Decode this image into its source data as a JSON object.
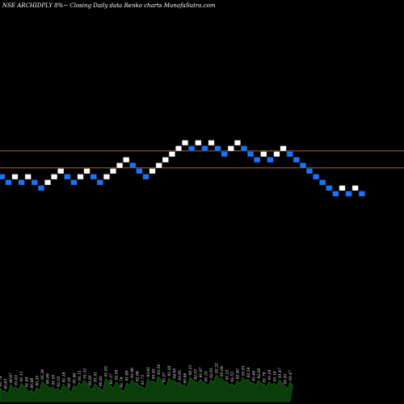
{
  "title": "NSE ARCHIDPLY 8%~  Closing Daily data  Renko  charts MunafaSutra.com",
  "colors": {
    "background": "#000000",
    "up_brick": "#ffffff",
    "down_brick": "#1874ff",
    "brick_border": "#222222",
    "level_line": "#c8762a",
    "volume_fill": "#0b3d0b",
    "volume_stroke": "#1f7a1f"
  },
  "chart_data": {
    "type": "renko",
    "title": "NSE ARCHIDPLY 8%~  Closing Daily data  Renko  charts MunafaSutra.com",
    "grid": false,
    "y_note": "brick levels in steps of one brick (relative)",
    "bricks": [
      {
        "level": 9,
        "dir": "down"
      },
      {
        "level": 8,
        "dir": "down"
      },
      {
        "level": 9,
        "dir": "up"
      },
      {
        "level": 8,
        "dir": "down"
      },
      {
        "level": 9,
        "dir": "up"
      },
      {
        "level": 8,
        "dir": "down"
      },
      {
        "level": 7,
        "dir": "down"
      },
      {
        "level": 8,
        "dir": "up"
      },
      {
        "level": 9,
        "dir": "up"
      },
      {
        "level": 10,
        "dir": "up"
      },
      {
        "level": 9,
        "dir": "down"
      },
      {
        "level": 8,
        "dir": "down"
      },
      {
        "level": 9,
        "dir": "up"
      },
      {
        "level": 10,
        "dir": "up"
      },
      {
        "level": 9,
        "dir": "down"
      },
      {
        "level": 8,
        "dir": "down"
      },
      {
        "level": 9,
        "dir": "up"
      },
      {
        "level": 10,
        "dir": "up"
      },
      {
        "level": 11,
        "dir": "up"
      },
      {
        "level": 12,
        "dir": "up"
      },
      {
        "level": 11,
        "dir": "down"
      },
      {
        "level": 10,
        "dir": "down"
      },
      {
        "level": 9,
        "dir": "down"
      },
      {
        "level": 10,
        "dir": "up"
      },
      {
        "level": 11,
        "dir": "up"
      },
      {
        "level": 12,
        "dir": "up"
      },
      {
        "level": 13,
        "dir": "up"
      },
      {
        "level": 14,
        "dir": "up"
      },
      {
        "level": 15,
        "dir": "up"
      },
      {
        "level": 14,
        "dir": "down"
      },
      {
        "level": 15,
        "dir": "up"
      },
      {
        "level": 14,
        "dir": "down"
      },
      {
        "level": 15,
        "dir": "up"
      },
      {
        "level": 14,
        "dir": "down"
      },
      {
        "level": 13,
        "dir": "down"
      },
      {
        "level": 14,
        "dir": "up"
      },
      {
        "level": 15,
        "dir": "up"
      },
      {
        "level": 14,
        "dir": "down"
      },
      {
        "level": 13,
        "dir": "down"
      },
      {
        "level": 12,
        "dir": "down"
      },
      {
        "level": 13,
        "dir": "up"
      },
      {
        "level": 12,
        "dir": "down"
      },
      {
        "level": 13,
        "dir": "up"
      },
      {
        "level": 14,
        "dir": "up"
      },
      {
        "level": 13,
        "dir": "down"
      },
      {
        "level": 12,
        "dir": "down"
      },
      {
        "level": 11,
        "dir": "down"
      },
      {
        "level": 10,
        "dir": "down"
      },
      {
        "level": 9,
        "dir": "down"
      },
      {
        "level": 8,
        "dir": "down"
      },
      {
        "level": 7,
        "dir": "down"
      },
      {
        "level": 6,
        "dir": "down"
      },
      {
        "level": 7,
        "dir": "up"
      },
      {
        "level": 6,
        "dir": "down"
      },
      {
        "level": 7,
        "dir": "up"
      },
      {
        "level": 6,
        "dir": "down"
      }
    ],
    "reference_lines": [
      {
        "level": 13.6
      },
      {
        "level": 10.6
      }
    ],
    "volume_labels": [
      "91.74",
      "90.83",
      "90.67",
      "91.63",
      "91.11",
      "91.49",
      "90.48",
      "90.35",
      "91.36",
      "90.89",
      "91.05",
      "92.16",
      "91.18",
      "90.18",
      "91.46",
      "91.11",
      "91.52",
      "91.81",
      "91.91",
      "90.82",
      "91.63",
      "91.37",
      "92.58",
      "91.79",
      "91.89",
      "91.98",
      "92.06",
      "91.71",
      "93.61",
      "93.45",
      "93.54",
      "91.07",
      "91.28",
      "94.95",
      "93.95",
      "90.98",
      "90.15",
      "92.55",
      "91.97",
      "91.35",
      "92.61",
      "92.32",
      "92.08",
      "91.25",
      "91.55",
      "92.40",
      "91.91",
      "92.54",
      "91.84",
      "92.06",
      "91.79",
      "91.54",
      "91.18",
      "91.47",
      "91.81",
      "91.47"
    ],
    "volume": [
      28,
      22,
      35,
      30,
      38,
      26,
      24,
      29,
      42,
      33,
      31,
      27,
      36,
      25,
      34,
      40,
      44,
      30,
      37,
      28,
      48,
      33,
      41,
      26,
      39,
      45,
      38,
      31,
      47,
      43,
      52,
      36,
      49,
      44,
      40,
      34,
      51,
      42,
      46,
      38,
      45,
      55,
      48,
      41,
      37,
      43,
      50,
      46,
      39,
      44,
      36,
      41,
      38,
      45,
      33,
      40
    ]
  }
}
